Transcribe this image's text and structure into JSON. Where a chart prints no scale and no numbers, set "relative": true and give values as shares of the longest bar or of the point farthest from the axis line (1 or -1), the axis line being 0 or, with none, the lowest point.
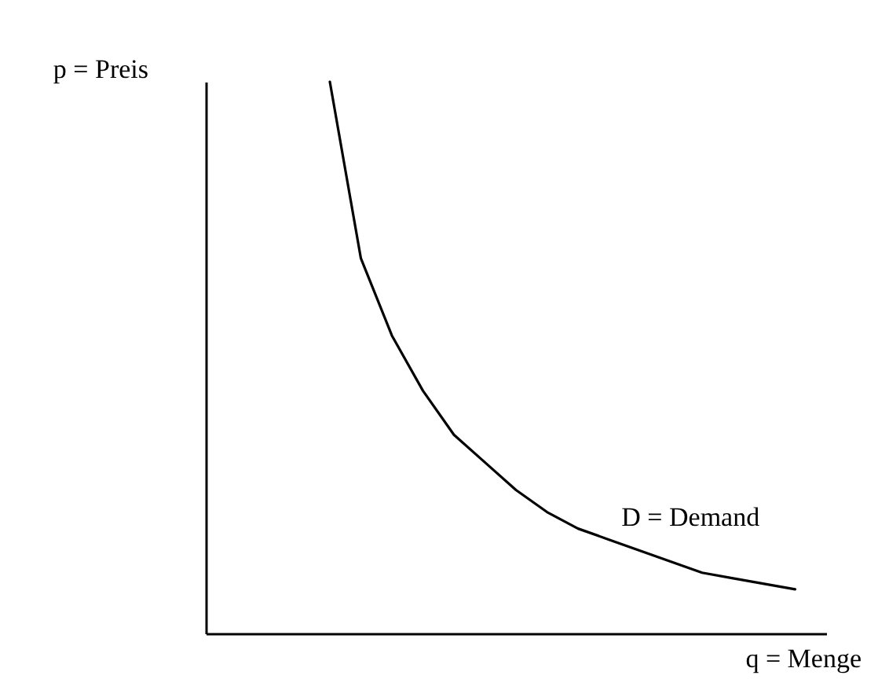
{
  "chart_data": {
    "type": "line",
    "relative": true,
    "xlabel": "q = Menge",
    "ylabel": "p = Preis",
    "annotations": [
      "D = Demand"
    ],
    "categories": [
      null,
      null,
      null,
      null,
      null,
      null,
      null,
      null,
      null,
      null,
      null,
      null,
      null,
      null,
      null,
      null,
      null,
      null,
      null,
      null,
      null
    ],
    "series": [
      {
        "color": "#000000",
        "values": [
          null,
          null,
          null,
          null,
          1,
          0.68,
          0.54,
          0.44,
          0.36,
          0.31,
          0.26,
          0.22,
          0.19,
          0.17,
          0.15,
          0.13,
          0.11,
          0.1,
          0.09,
          0.08,
          null
        ]
      }
    ],
    "grid": false,
    "marker": "none",
    "line_style": "solid"
  }
}
